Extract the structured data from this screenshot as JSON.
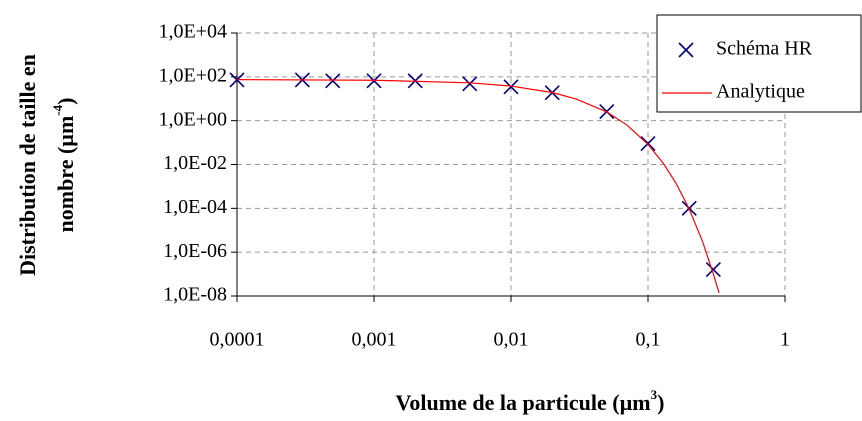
{
  "chart_data": {
    "type": "line",
    "xlabel": {
      "text": "Volume de la particule (µm",
      "superscript": "3",
      "suffix": ")"
    },
    "ylabel": {
      "lines": [
        "Distribution de taille en",
        "nombre (µm"
      ],
      "superscript": "-4",
      "suffix": ")"
    },
    "xlog": true,
    "ylog": true,
    "grid": true,
    "legend": "top-right",
    "xlim": [
      0.0001,
      1
    ],
    "ylim": [
      1e-08,
      10000
    ],
    "xticks": [
      {
        "value": 0.0001,
        "label": "0,0001"
      },
      {
        "value": 0.001,
        "label": "0,001"
      },
      {
        "value": 0.01,
        "label": "0,01"
      },
      {
        "value": 0.1,
        "label": "0,1"
      },
      1
    ],
    "yticks": [
      {
        "value": 1e-08,
        "label": "1,0E-08"
      },
      {
        "value": 1e-06,
        "label": "1,0E-06"
      },
      {
        "value": 0.0001,
        "label": "1,0E-04"
      },
      {
        "value": 0.01,
        "label": "1,0E-02"
      },
      {
        "value": 1,
        "label": "1,0E+00"
      },
      {
        "value": 100,
        "label": "1,0E+02"
      },
      {
        "value": 10000,
        "label": "1,0E+04"
      }
    ],
    "series": [
      {
        "name": "Schéma HR",
        "type": "scatter",
        "color": "#000080",
        "x": [
          0.0001,
          0.0003,
          0.0005,
          0.001,
          0.002,
          0.005,
          0.01,
          0.02,
          0.05,
          0.1,
          0.2,
          0.3
        ],
        "values": [
          72,
          72,
          66,
          66,
          66,
          48,
          35,
          19,
          2.6,
          0.09,
          0.0001,
          1.6e-07
        ]
      },
      {
        "name": "Analytique",
        "type": "line",
        "color": "#ff0000",
        "x": [
          0.0001,
          0.001,
          0.005,
          0.01,
          0.02,
          0.03,
          0.05,
          0.07,
          0.1,
          0.13,
          0.16,
          0.2,
          0.25,
          0.3,
          0.33
        ],
        "values": [
          74.5,
          70.1,
          53.3,
          38,
          19.3,
          9.7,
          2.5,
          0.64,
          0.083,
          0.0108,
          0.00141,
          9.3e-05,
          3.1e-06,
          1e-07,
          1.4e-08
        ]
      }
    ]
  }
}
